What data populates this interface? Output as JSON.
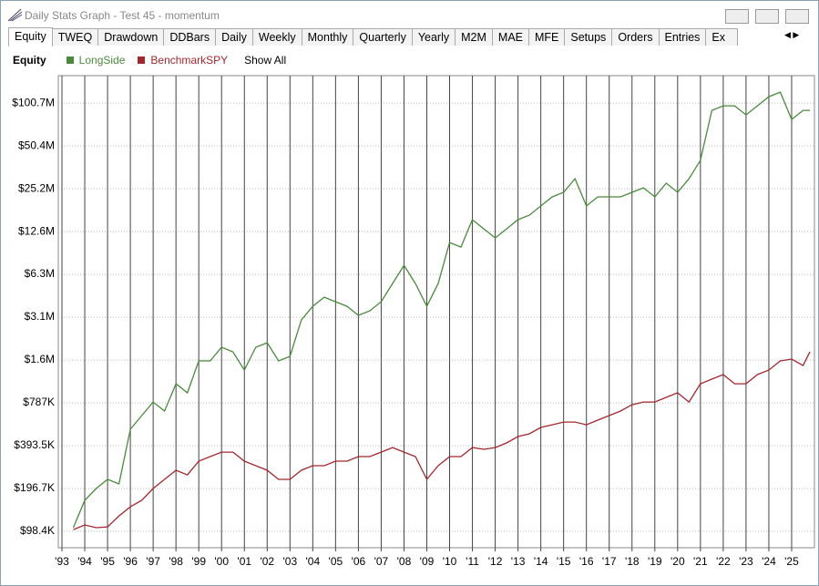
{
  "window": {
    "title": "Daily Stats Graph - Test 45 - momentum",
    "tabs": [
      "Equity",
      "TWEQ",
      "Drawdown",
      "DDBars",
      "Daily",
      "Weekly",
      "Monthly",
      "Quarterly",
      "Yearly",
      "M2M",
      "MAE",
      "MFE",
      "Setups",
      "Orders",
      "Entries",
      "Ex"
    ]
  },
  "toolbar": {
    "label": "Equity",
    "show_all": "Show All"
  },
  "chart_data": {
    "type": "line",
    "log_scale": true,
    "grid": true,
    "x": [
      1993.5,
      1994,
      1994.5,
      1995,
      1995.5,
      1996,
      1996.5,
      1997,
      1997.5,
      1998,
      1998.5,
      1999,
      1999.5,
      2000,
      2000.5,
      2001,
      2001.5,
      2002,
      2002.5,
      2003,
      2003.5,
      2004,
      2004.5,
      2005,
      2005.5,
      2006,
      2006.5,
      2007,
      2007.5,
      2008,
      2008.5,
      2009,
      2009.5,
      2010,
      2010.5,
      2011,
      2011.5,
      2012,
      2012.5,
      2013,
      2013.5,
      2014,
      2014.5,
      2015,
      2015.5,
      2016,
      2016.5,
      2017,
      2017.5,
      2018,
      2018.5,
      2019,
      2019.5,
      2020,
      2020.5,
      2021,
      2021.5,
      2022,
      2022.5,
      2023,
      2023.5,
      2024,
      2024.5,
      2025,
      2025.5,
      2025.8
    ],
    "series": [
      {
        "name": "LongSide",
        "color": "#4a8a3c",
        "values": [
          104400,
          162500,
          196800,
          228100,
          211900,
          513300,
          640400,
          798800,
          689400,
          1072800,
          926000,
          1551600,
          1551600,
          1935600,
          1797500,
          1338400,
          1935600,
          2083000,
          1551600,
          1670000,
          3012000,
          3757800,
          4355000,
          4046000,
          3757800,
          3244000,
          3491000,
          4046000,
          5434000,
          7298000,
          5434000,
          3757800,
          5434000,
          10549000,
          9801000,
          15262000,
          13166000,
          11355000,
          13166000,
          15262000,
          16423000,
          19040000,
          22071000,
          23754000,
          29628000,
          19040000,
          22071000,
          22071000,
          22071000,
          23754000,
          25564000,
          22071000,
          27532000,
          23754000,
          29628000,
          39803000,
          89544000,
          96393000,
          96393000,
          83148000,
          96393000,
          111684000,
          120245000,
          77244000,
          89544000,
          89544000
        ]
      },
      {
        "name": "BenchmarkSPY",
        "color": "#a0282e",
        "values": [
          101300,
          109100,
          104400,
          105900,
          126400,
          146500,
          162500,
          196800,
          228100,
          264400,
          245500,
          306300,
          329800,
          354900,
          354900,
          306300,
          284600,
          264400,
          228100,
          228100,
          264400,
          284600,
          284600,
          306300,
          306300,
          329800,
          329800,
          354900,
          382100,
          354900,
          329800,
          228100,
          284600,
          329800,
          329800,
          382100,
          371100,
          382100,
          411400,
          456200,
          476800,
          528700,
          552500,
          577500,
          577500,
          552500,
          594900,
          640400,
          689400,
          764200,
          798800,
          798800,
          860100,
          926000,
          798800,
          1072800,
          1155200,
          1243800,
          1072800,
          1072800,
          1243800,
          1338400,
          1551600,
          1598000,
          1440600,
          1797500
        ]
      }
    ],
    "xlim": [
      1992.84,
      2026.0
    ],
    "xticks": [
      {
        "value": 1993,
        "label": "'93"
      },
      {
        "value": 1994,
        "label": "'94"
      },
      {
        "value": 1995,
        "label": "'95"
      },
      {
        "value": 1996,
        "label": "'96"
      },
      {
        "value": 1997,
        "label": "'97"
      },
      {
        "value": 1998,
        "label": "'98"
      },
      {
        "value": 1999,
        "label": "'99"
      },
      {
        "value": 2000,
        "label": "'00"
      },
      {
        "value": 2001,
        "label": "'01"
      },
      {
        "value": 2002,
        "label": "'02"
      },
      {
        "value": 2003,
        "label": "'03"
      },
      {
        "value": 2004,
        "label": "'04"
      },
      {
        "value": 2005,
        "label": "'05"
      },
      {
        "value": 2006,
        "label": "'06"
      },
      {
        "value": 2007,
        "label": "'07"
      },
      {
        "value": 2008,
        "label": "'08"
      },
      {
        "value": 2009,
        "label": "'09"
      },
      {
        "value": 2010,
        "label": "'10"
      },
      {
        "value": 2011,
        "label": "'11"
      },
      {
        "value": 2012,
        "label": "'12"
      },
      {
        "value": 2013,
        "label": "'13"
      },
      {
        "value": 2014,
        "label": "'14"
      },
      {
        "value": 2015,
        "label": "'15"
      },
      {
        "value": 2016,
        "label": "'16"
      },
      {
        "value": 2017,
        "label": "'17"
      },
      {
        "value": 2018,
        "label": "'18"
      },
      {
        "value": 2019,
        "label": "'19"
      },
      {
        "value": 2020,
        "label": "'20"
      },
      {
        "value": 2021,
        "label": "'21"
      },
      {
        "value": 2022,
        "label": "'22"
      },
      {
        "value": 2023,
        "label": "'23"
      },
      {
        "value": 2024,
        "label": "'24"
      },
      {
        "value": 2025,
        "label": "'25"
      }
    ],
    "ylim": [
      75500,
      157000000
    ],
    "yticks": [
      {
        "value": 98400,
        "label": "$98.4K"
      },
      {
        "value": 196700,
        "label": "$196.7K"
      },
      {
        "value": 393500,
        "label": "$393.5K"
      },
      {
        "value": 787000,
        "label": "$787K"
      },
      {
        "value": 1574000,
        "label": "$1.6M"
      },
      {
        "value": 3148000,
        "label": "$3.1M"
      },
      {
        "value": 6296000,
        "label": "$6.3M"
      },
      {
        "value": 12590000,
        "label": "$12.6M"
      },
      {
        "value": 25180000,
        "label": "$25.2M"
      },
      {
        "value": 50360000,
        "label": "$50.4M"
      },
      {
        "value": 100700000,
        "label": "$100.7M"
      }
    ]
  }
}
